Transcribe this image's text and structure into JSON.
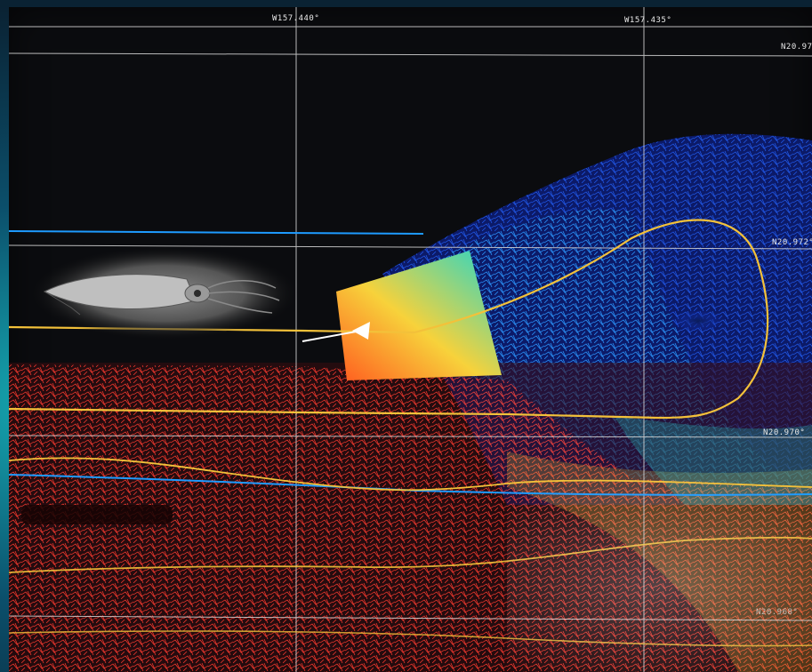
{
  "map": {
    "coordinate_labels": {
      "lon_1": "W157.440°",
      "lon_2": "W157.435°",
      "lat_1": "N20.97",
      "lat_2": "N20.972°",
      "lat_3": "N20.970°",
      "lat_4": "N20.968°"
    },
    "colors": {
      "background": "#0b0c0f",
      "grid_line": "#d9d9d9",
      "blue_line": "#1e9bff",
      "track": "#f3c13a",
      "shallow": "#ff3b2f",
      "mid": "#f6d33a",
      "deep": "#1637c8"
    },
    "icons": [
      "squid-icon",
      "vehicle-heading-marker-icon"
    ],
    "overlays": [
      "bathymetry-mesh",
      "sonar-swath",
      "vehicle-track"
    ]
  }
}
